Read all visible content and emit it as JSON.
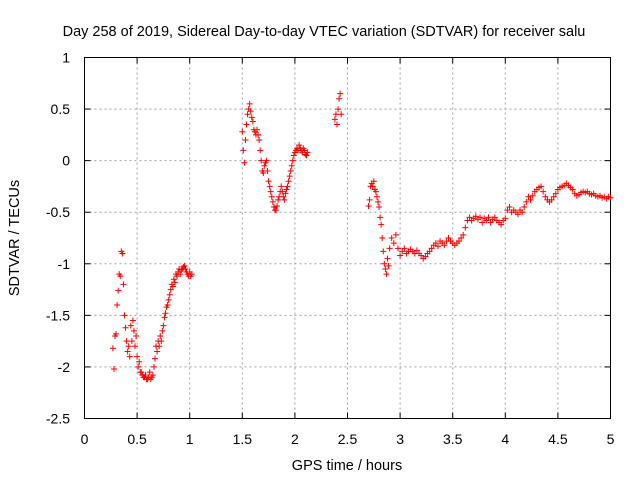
{
  "chart_data": {
    "type": "scatter",
    "title": "Day 258 of 2019, Sidereal Day-to-day VTEC variation (SDTVAR) for receiver salu",
    "xlabel": "GPS time / hours",
    "ylabel": "SDTVAR / TECUs",
    "xlim": [
      0,
      5
    ],
    "ylim": [
      -2.5,
      1
    ],
    "xticks": [
      0,
      0.5,
      1,
      1.5,
      2,
      2.5,
      3,
      3.5,
      4,
      4.5,
      5
    ],
    "xtick_labels": [
      "0",
      "0.5",
      "1",
      "1.5",
      "2",
      "2.5",
      "3",
      "3.5",
      "4",
      "4.5",
      "5"
    ],
    "yticks": [
      -2.5,
      -2,
      -1.5,
      -1,
      -0.5,
      0,
      0.5,
      1
    ],
    "ytick_labels": [
      "-2.5",
      "-2",
      "-1.5",
      "-1",
      "-0.5",
      "0",
      "0.5",
      "1"
    ],
    "grid": true,
    "marker": "+",
    "color": "#ff0000",
    "series": [
      {
        "name": "SDTVAR",
        "x": [
          0.27,
          0.28,
          0.29,
          0.3,
          0.31,
          0.32,
          0.33,
          0.34,
          0.35,
          0.36,
          0.37,
          0.38,
          0.39,
          0.4,
          0.41,
          0.42,
          0.43,
          0.44,
          0.45,
          0.46,
          0.47,
          0.48,
          0.49,
          0.5,
          0.51,
          0.52,
          0.53,
          0.54,
          0.55,
          0.56,
          0.57,
          0.58,
          0.59,
          0.6,
          0.61,
          0.62,
          0.63,
          0.64,
          0.65,
          0.66,
          0.67,
          0.68,
          0.69,
          0.7,
          0.71,
          0.72,
          0.73,
          0.74,
          0.75,
          0.76,
          0.77,
          0.78,
          0.79,
          0.8,
          0.81,
          0.82,
          0.83,
          0.84,
          0.85,
          0.86,
          0.87,
          0.88,
          0.89,
          0.9,
          0.91,
          0.92,
          0.93,
          0.94,
          0.95,
          0.96,
          0.97,
          0.98,
          0.99,
          1.0,
          1.01,
          1.02,
          1.5,
          1.51,
          1.52,
          1.53,
          1.54,
          1.55,
          1.56,
          1.57,
          1.58,
          1.59,
          1.6,
          1.61,
          1.62,
          1.63,
          1.64,
          1.65,
          1.66,
          1.67,
          1.68,
          1.69,
          1.7,
          1.71,
          1.72,
          1.73,
          1.74,
          1.75,
          1.76,
          1.77,
          1.78,
          1.79,
          1.8,
          1.81,
          1.82,
          1.83,
          1.84,
          1.85,
          1.86,
          1.87,
          1.88,
          1.89,
          1.9,
          1.91,
          1.92,
          1.93,
          1.94,
          1.95,
          1.96,
          1.97,
          1.98,
          1.99,
          2.0,
          2.01,
          2.02,
          2.03,
          2.04,
          2.05,
          2.06,
          2.07,
          2.08,
          2.09,
          2.1,
          2.11,
          2.12,
          2.38,
          2.39,
          2.4,
          2.41,
          2.42,
          2.43,
          2.44,
          2.7,
          2.71,
          2.72,
          2.73,
          2.74,
          2.75,
          2.76,
          2.77,
          2.78,
          2.79,
          2.8,
          2.81,
          2.82,
          2.83,
          2.84,
          2.85,
          2.86,
          2.87,
          2.88,
          2.89,
          2.9,
          2.92,
          2.94,
          2.96,
          2.98,
          3.0,
          3.02,
          3.04,
          3.06,
          3.08,
          3.1,
          3.12,
          3.14,
          3.16,
          3.18,
          3.2,
          3.22,
          3.24,
          3.26,
          3.28,
          3.3,
          3.32,
          3.34,
          3.36,
          3.38,
          3.4,
          3.42,
          3.44,
          3.46,
          3.48,
          3.5,
          3.52,
          3.54,
          3.56,
          3.58,
          3.6,
          3.62,
          3.64,
          3.66,
          3.68,
          3.7,
          3.72,
          3.74,
          3.76,
          3.78,
          3.8,
          3.82,
          3.84,
          3.86,
          3.88,
          3.9,
          3.92,
          3.94,
          3.96,
          3.98,
          4.0,
          4.02,
          4.04,
          4.06,
          4.08,
          4.1,
          4.12,
          4.14,
          4.16,
          4.18,
          4.2,
          4.22,
          4.24,
          4.26,
          4.28,
          4.3,
          4.32,
          4.34,
          4.36,
          4.38,
          4.4,
          4.42,
          4.44,
          4.46,
          4.48,
          4.5,
          4.52,
          4.54,
          4.56,
          4.58,
          4.6,
          4.62,
          4.64,
          4.66,
          4.68,
          4.7,
          4.72,
          4.74,
          4.76,
          4.78,
          4.8,
          4.82,
          4.84,
          4.86,
          4.88,
          4.9,
          4.92,
          4.94,
          4.96,
          4.98,
          5.0
        ],
        "y": [
          -1.82,
          -2.02,
          -1.7,
          -1.68,
          -1.4,
          -1.26,
          -1.1,
          -1.12,
          -0.88,
          -0.9,
          -1.2,
          -1.5,
          -1.62,
          -1.75,
          -1.85,
          -1.8,
          -1.9,
          -1.6,
          -1.75,
          -1.55,
          -1.65,
          -1.8,
          -1.7,
          -1.9,
          -2.0,
          -1.95,
          -2.05,
          -2.05,
          -2.08,
          -2.1,
          -2.1,
          -2.08,
          -2.12,
          -2.12,
          -2.1,
          -2.05,
          -2.12,
          -2.1,
          -2.08,
          -2.0,
          -1.92,
          -1.8,
          -1.85,
          -1.75,
          -1.8,
          -1.7,
          -1.75,
          -1.65,
          -1.6,
          -1.52,
          -1.48,
          -1.42,
          -1.4,
          -1.35,
          -1.3,
          -1.25,
          -1.2,
          -1.22,
          -1.15,
          -1.18,
          -1.1,
          -1.12,
          -1.08,
          -1.05,
          -1.1,
          -1.06,
          -1.05,
          -1.03,
          -1.02,
          -1.05,
          -1.08,
          -1.1,
          -1.12,
          -1.08,
          -1.12,
          -1.1,
          0.28,
          0.1,
          -0.02,
          0.2,
          0.35,
          0.45,
          0.5,
          0.55,
          0.48,
          0.42,
          0.38,
          0.3,
          0.28,
          0.25,
          0.3,
          0.25,
          0.2,
          0.1,
          0.0,
          -0.1,
          -0.12,
          -0.05,
          -0.02,
          0.0,
          -0.1,
          -0.2,
          -0.25,
          -0.3,
          -0.35,
          -0.4,
          -0.45,
          -0.48,
          -0.48,
          -0.44,
          -0.38,
          -0.35,
          -0.3,
          -0.25,
          -0.3,
          -0.35,
          -0.38,
          -0.32,
          -0.28,
          -0.25,
          -0.2,
          -0.15,
          -0.1,
          -0.05,
          0.0,
          0.05,
          0.08,
          0.1,
          0.12,
          0.1,
          0.15,
          0.12,
          0.1,
          0.08,
          0.12,
          0.1,
          0.06,
          0.05,
          0.08,
          0.4,
          0.45,
          0.35,
          0.5,
          0.6,
          0.65,
          0.45,
          -0.44,
          -0.38,
          -0.25,
          -0.22,
          -0.25,
          -0.2,
          -0.28,
          -0.3,
          -0.35,
          -0.4,
          -0.45,
          -0.55,
          -0.62,
          -0.75,
          -0.88,
          -1.0,
          -1.05,
          -1.1,
          -0.95,
          -1.02,
          -0.85,
          -0.75,
          -0.8,
          -0.72,
          -0.85,
          -0.92,
          -0.88,
          -0.85,
          -0.9,
          -0.88,
          -0.86,
          -0.88,
          -0.9,
          -0.87,
          -0.9,
          -0.92,
          -0.95,
          -0.93,
          -0.9,
          -0.88,
          -0.85,
          -0.82,
          -0.8,
          -0.83,
          -0.78,
          -0.8,
          -0.82,
          -0.78,
          -0.75,
          -0.78,
          -0.8,
          -0.82,
          -0.8,
          -0.78,
          -0.75,
          -0.72,
          -0.65,
          -0.58,
          -0.55,
          -0.58,
          -0.56,
          -0.54,
          -0.57,
          -0.55,
          -0.6,
          -0.56,
          -0.58,
          -0.55,
          -0.6,
          -0.57,
          -0.55,
          -0.58,
          -0.6,
          -0.62,
          -0.58,
          -0.56,
          -0.48,
          -0.45,
          -0.5,
          -0.48,
          -0.5,
          -0.52,
          -0.48,
          -0.5,
          -0.45,
          -0.4,
          -0.35,
          -0.38,
          -0.34,
          -0.3,
          -0.28,
          -0.26,
          -0.25,
          -0.3,
          -0.35,
          -0.38,
          -0.4,
          -0.38,
          -0.35,
          -0.32,
          -0.28,
          -0.26,
          -0.25,
          -0.24,
          -0.22,
          -0.24,
          -0.26,
          -0.28,
          -0.32,
          -0.34,
          -0.33,
          -0.31,
          -0.3,
          -0.31,
          -0.3,
          -0.32,
          -0.33,
          -0.32,
          -0.34,
          -0.35,
          -0.34,
          -0.36,
          -0.35,
          -0.37,
          -0.35,
          -0.36
        ]
      }
    ]
  }
}
